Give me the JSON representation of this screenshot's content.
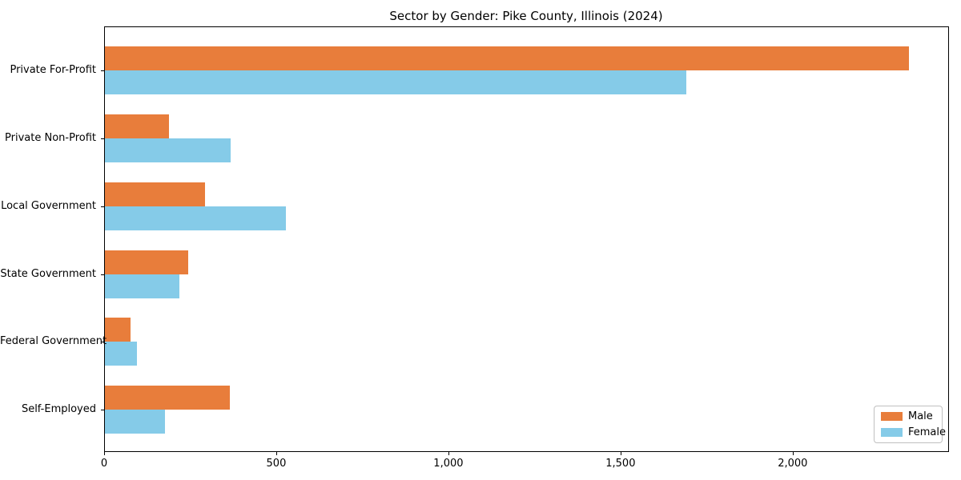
{
  "chart_data": {
    "type": "bar",
    "orientation": "horizontal",
    "title": "Sector by Gender: Pike County, Illinois (2024)",
    "xlabel": "",
    "ylabel": "",
    "categories": [
      "Private For-Profit",
      "Private Non-Profit",
      "Local Government",
      "State Government",
      "Federal Government",
      "Self-Employed"
    ],
    "series": [
      {
        "name": "Male",
        "color": "#e87d3b",
        "values": [
          2337,
          188,
          293,
          244,
          77,
          366
        ]
      },
      {
        "name": "Female",
        "color": "#85cbe8",
        "values": [
          1691,
          367,
          527,
          219,
          95,
          177
        ]
      }
    ],
    "xlim": [
      0,
      2454
    ],
    "xticks": [
      0,
      500,
      1000,
      1500,
      2000
    ],
    "xtick_labels": [
      "0",
      "500",
      "1,000",
      "1,500",
      "2,000"
    ],
    "grid": false,
    "legend_position": "lower right"
  }
}
